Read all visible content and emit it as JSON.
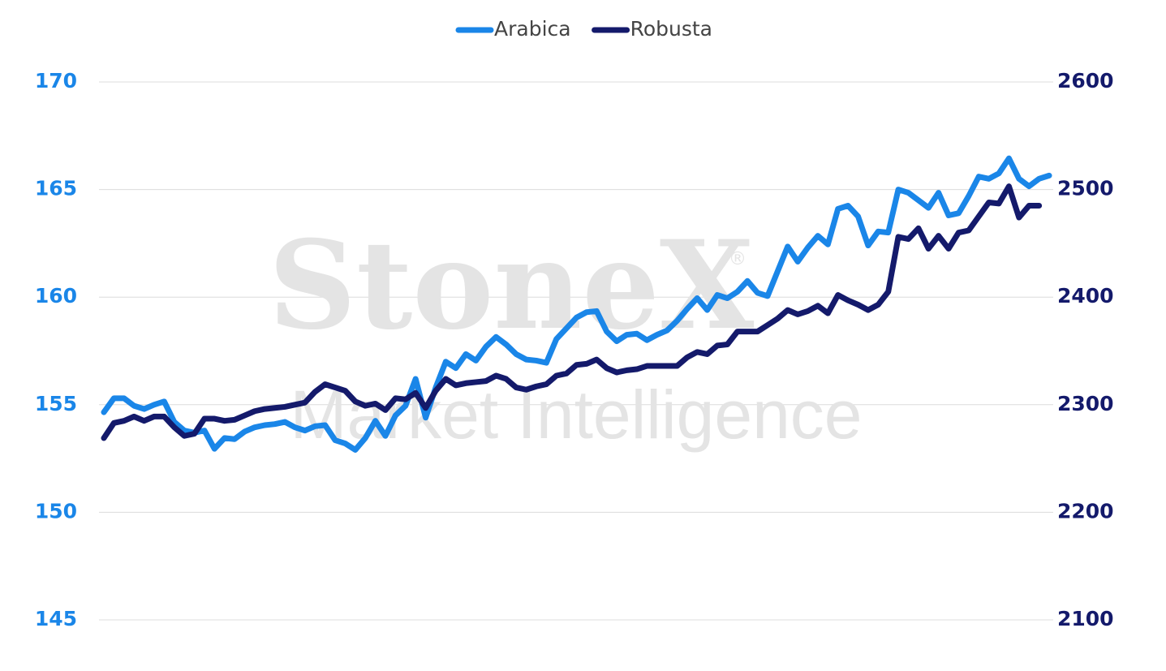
{
  "chart_data": {
    "type": "line",
    "watermark": {
      "brand": "StoneX",
      "mark": "®",
      "sub": "Market Intelligence"
    },
    "legend": "top",
    "grid": true,
    "ylim": [
      145,
      170
    ],
    "yticks": [
      145,
      150,
      155,
      160,
      165,
      170
    ],
    "y2lim": [
      2100,
      2600
    ],
    "y2ticks": [
      2100,
      2200,
      2300,
      2400,
      2500,
      2600
    ],
    "series": [
      {
        "name": "Arabica",
        "color": "#1a86e8",
        "axis": "y",
        "values": [
          154.65,
          155.3,
          155.3,
          154.95,
          154.8,
          155.0,
          155.15,
          154.2,
          153.8,
          153.7,
          153.8,
          152.95,
          153.45,
          153.4,
          153.75,
          153.95,
          154.05,
          154.1,
          154.2,
          153.95,
          153.8,
          154.0,
          154.05,
          153.35,
          153.2,
          152.9,
          153.45,
          154.25,
          153.55,
          154.5,
          154.95,
          156.2,
          154.4,
          155.8,
          157.0,
          156.7,
          157.35,
          157.05,
          157.7,
          158.15,
          157.8,
          157.35,
          157.1,
          157.05,
          156.95,
          158.05,
          158.55,
          159.05,
          159.3,
          159.35,
          158.4,
          157.95,
          158.25,
          158.3,
          158.0,
          158.25,
          158.45,
          158.9,
          159.45,
          159.95,
          159.4,
          160.1,
          159.95,
          160.25,
          160.75,
          160.2,
          160.05,
          161.2,
          162.35,
          161.65,
          162.3,
          162.85,
          162.45,
          164.1,
          164.25,
          163.75,
          162.4,
          163.05,
          163.0,
          165.0,
          164.85,
          164.5,
          164.15,
          164.85,
          163.8,
          163.9,
          164.7,
          165.6,
          165.5,
          165.75,
          166.45,
          165.5,
          165.15,
          165.5,
          165.65
        ]
      },
      {
        "name": "Robusta",
        "color": "#141a6b",
        "axis": "y2",
        "values": [
          2269,
          2283,
          2285,
          2289,
          2285,
          2289,
          2289,
          2279,
          2271,
          2273,
          2287,
          2287,
          2285,
          2286,
          2290,
          2294,
          2296,
          2297,
          2298,
          2300,
          2302,
          2312,
          2319,
          2316,
          2313,
          2303,
          2299,
          2301,
          2295,
          2306,
          2305,
          2311,
          2297,
          2313,
          2324,
          2318,
          2320,
          2321,
          2322,
          2327,
          2324,
          2316,
          2314,
          2317,
          2319,
          2327,
          2329,
          2337,
          2338,
          2342,
          2334,
          2330,
          2332,
          2333,
          2336,
          2336,
          2336,
          2336,
          2344,
          2349,
          2347,
          2355,
          2356,
          2368,
          2368,
          2368,
          2374,
          2380,
          2388,
          2384,
          2387,
          2392,
          2385,
          2402,
          2397,
          2393,
          2388,
          2393,
          2405,
          2456,
          2454,
          2464,
          2445,
          2457,
          2445,
          2460,
          2462,
          2475,
          2488,
          2487,
          2503,
          2474,
          2485,
          2485,
          null
        ]
      }
    ]
  }
}
